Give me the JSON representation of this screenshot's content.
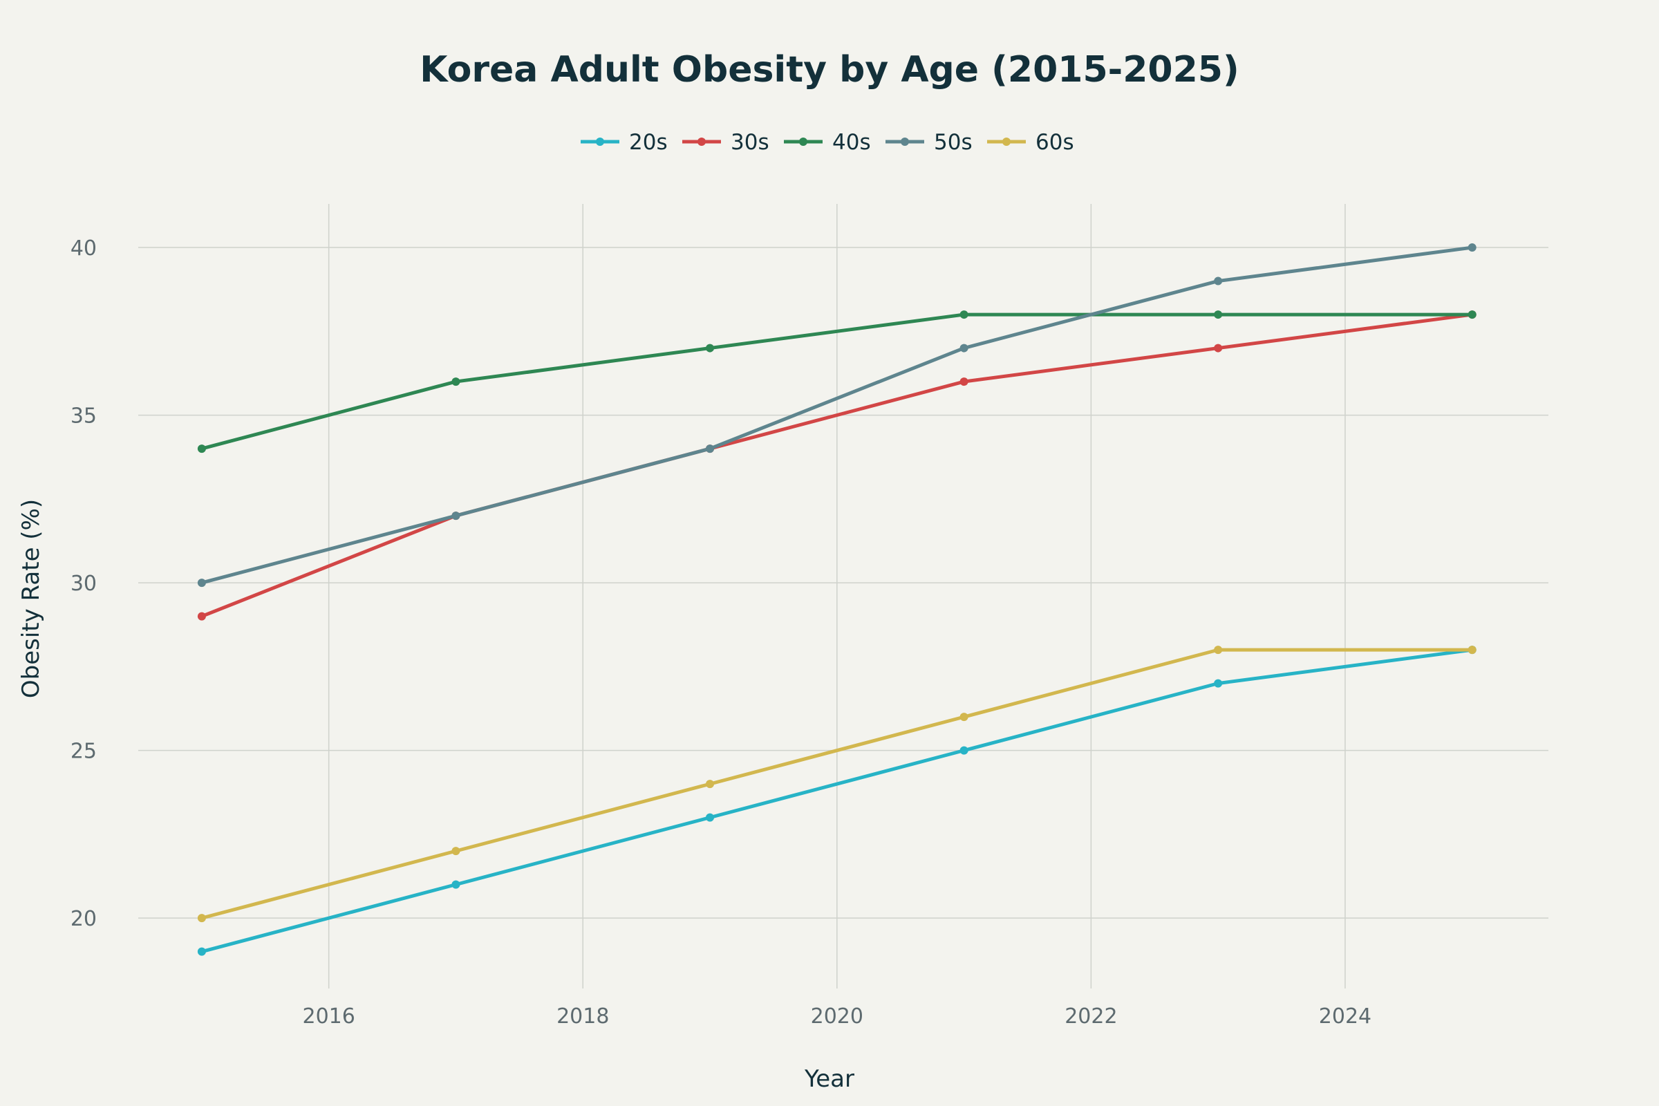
{
  "chart_data": {
    "type": "line",
    "title": "Korea Adult Obesity by Age (2015-2025)",
    "xlabel": "Year",
    "ylabel": "Obesity Rate (%)",
    "x": [
      2015,
      2017,
      2019,
      2021,
      2023,
      2025
    ],
    "xlim": [
      2014.5,
      2025.6
    ],
    "ylim": [
      17.9,
      41.3
    ],
    "xticks": [
      2016,
      2018,
      2020,
      2022,
      2024
    ],
    "yticks": [
      20,
      25,
      30,
      35,
      40
    ],
    "grid": true,
    "legend_position": "top-center",
    "series": [
      {
        "name": "20s",
        "color": "#27b3c6",
        "values": [
          19,
          21,
          23,
          25,
          27,
          28
        ]
      },
      {
        "name": "30s",
        "color": "#d24646",
        "values": [
          29,
          32,
          34,
          36,
          37,
          38
        ]
      },
      {
        "name": "40s",
        "color": "#2e8753",
        "values": [
          34,
          36,
          37,
          38,
          38,
          38
        ]
      },
      {
        "name": "50s",
        "color": "#5e858e",
        "values": [
          30,
          32,
          34,
          37,
          39,
          40
        ]
      },
      {
        "name": "60s",
        "color": "#d2b74e",
        "values": [
          20,
          22,
          24,
          26,
          28,
          28
        ]
      }
    ]
  }
}
